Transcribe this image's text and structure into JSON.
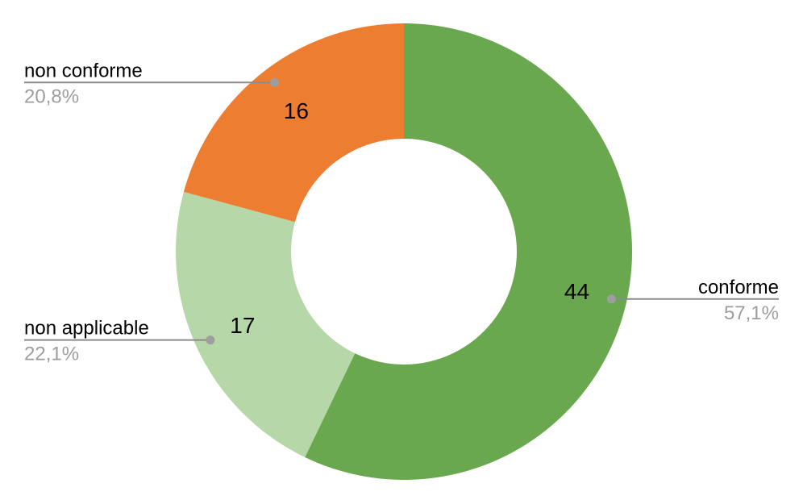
{
  "chart_data": {
    "type": "pie",
    "variant": "donut",
    "title": "",
    "start_angle_deg": 0,
    "direction": "clockwise",
    "slices": [
      {
        "label": "conforme",
        "value": 44,
        "percent_label": "57,1%",
        "color": "#6aa84f"
      },
      {
        "label": "non applicable",
        "value": 17,
        "percent_label": "22,1%",
        "color": "#b6d7a8"
      },
      {
        "label": "non conforme",
        "value": 16,
        "percent_label": "20,8%",
        "color": "#ed7d31"
      }
    ],
    "styles": {
      "background": "#ffffff",
      "value_label_color": "#000000",
      "name_label_color": "#000000",
      "percent_label_color": "#9e9e9e",
      "leader_line_color": "#8c8c8c",
      "leader_dot_color": "#9e9e9e"
    }
  }
}
